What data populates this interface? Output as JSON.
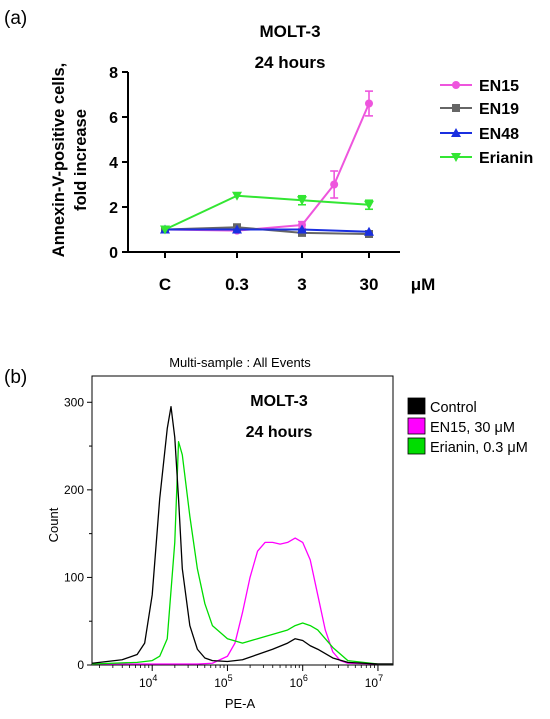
{
  "panel_a": {
    "label": "(a)",
    "title_line1": "MOLT-3",
    "title_line2": "24 hours",
    "ylabel_line1": "Annexin-V-positive cells,",
    "ylabel_line2": "fold increase",
    "x_unit": "μM"
  },
  "panel_b": {
    "label": "(b)",
    "header": "Multi-sample : All Events",
    "title_line1": "MOLT-3",
    "title_line2": "24 hours",
    "ylabel": "Count",
    "xlabel": "PE-A"
  },
  "chart_data": [
    {
      "type": "line",
      "title": "MOLT-3 24 hours",
      "xlabel": "",
      "ylabel": "Annexin-V-positive cells, fold increase",
      "categories": [
        "C",
        "0.3",
        "3",
        "30"
      ],
      "ylim": [
        0,
        8
      ],
      "yticks": [
        0,
        2,
        4,
        6,
        8
      ],
      "legend_position": "right",
      "series": [
        {
          "name": "EN15",
          "color": "#ee55dd",
          "marker": "circle",
          "x": [
            "C",
            "0.3",
            "3",
            "10",
            "30"
          ],
          "xpos": [
            0,
            1,
            2,
            2.48,
            3
          ],
          "values": [
            1.0,
            0.95,
            1.2,
            3.0,
            6.6
          ],
          "errors": [
            0.05,
            0.05,
            0.15,
            0.6,
            0.55
          ]
        },
        {
          "name": "EN19",
          "color": "#666666",
          "marker": "square",
          "x": [
            "C",
            "0.3",
            "3",
            "30"
          ],
          "xpos": [
            0,
            1,
            2,
            3
          ],
          "values": [
            1.0,
            1.1,
            0.85,
            0.8
          ],
          "errors": [
            0.05,
            0.08,
            0.05,
            0.05
          ]
        },
        {
          "name": "EN48",
          "color": "#1a2fe0",
          "marker": "triangle-up",
          "x": [
            "C",
            "0.3",
            "3",
            "30"
          ],
          "xpos": [
            0,
            1,
            2,
            3
          ],
          "values": [
            1.0,
            1.0,
            1.0,
            0.9
          ],
          "errors": [
            0.05,
            0.05,
            0.05,
            0.05
          ]
        },
        {
          "name": "Erianin",
          "color": "#33e633",
          "marker": "triangle-down",
          "x": [
            "C",
            "0.3",
            "3",
            "30"
          ],
          "xpos": [
            0,
            1,
            2,
            3
          ],
          "values": [
            1.0,
            2.5,
            2.3,
            2.1
          ],
          "errors": [
            0.05,
            0.1,
            0.2,
            0.2
          ]
        }
      ]
    },
    {
      "type": "line",
      "title": "Multi-sample : All Events",
      "xlabel": "PE-A",
      "ylabel": "Count",
      "x_scale": "log",
      "xlim_log10": [
        3.2,
        7.2
      ],
      "xticks": [
        "10^4",
        "10^5",
        "10^6",
        "10^7"
      ],
      "ylim": [
        0,
        330
      ],
      "yticks": [
        0,
        100,
        200,
        300
      ],
      "legend_position": "right",
      "series": [
        {
          "name": "Control",
          "color": "#000000",
          "x_log10": [
            3.2,
            3.4,
            3.6,
            3.8,
            3.9,
            4.0,
            4.1,
            4.2,
            4.25,
            4.3,
            4.35,
            4.4,
            4.5,
            4.6,
            4.7,
            4.8,
            5.0,
            5.2,
            5.4,
            5.6,
            5.8,
            5.9,
            6.0,
            6.1,
            6.2,
            6.4,
            6.6,
            7.0,
            7.2
          ],
          "values": [
            2,
            4,
            6,
            12,
            25,
            80,
            190,
            270,
            295,
            260,
            190,
            110,
            45,
            18,
            8,
            5,
            4,
            6,
            12,
            18,
            25,
            30,
            28,
            22,
            18,
            8,
            3,
            1,
            0
          ]
        },
        {
          "name": "EN15, 30 μM",
          "color": "#ff00ff",
          "x_log10": [
            3.2,
            4.0,
            4.6,
            4.8,
            5.0,
            5.1,
            5.2,
            5.3,
            5.4,
            5.5,
            5.6,
            5.7,
            5.8,
            5.9,
            6.0,
            6.1,
            6.2,
            6.3,
            6.4,
            6.5,
            6.6,
            7.0,
            7.2
          ],
          "values": [
            0,
            0,
            0,
            2,
            10,
            25,
            60,
            100,
            130,
            140,
            140,
            138,
            140,
            145,
            140,
            120,
            80,
            40,
            15,
            5,
            2,
            0,
            0
          ]
        },
        {
          "name": "Erianin, 0.3 μM",
          "color": "#00dd00",
          "x_log10": [
            3.2,
            3.8,
            4.0,
            4.1,
            4.2,
            4.3,
            4.35,
            4.4,
            4.5,
            4.6,
            4.7,
            4.8,
            5.0,
            5.2,
            5.4,
            5.6,
            5.8,
            5.9,
            6.0,
            6.1,
            6.2,
            6.3,
            6.4,
            6.6,
            7.0,
            7.2
          ],
          "values": [
            1,
            3,
            5,
            10,
            30,
            140,
            255,
            240,
            170,
            110,
            70,
            45,
            30,
            25,
            30,
            35,
            40,
            45,
            48,
            45,
            40,
            30,
            20,
            5,
            1,
            0
          ]
        }
      ]
    }
  ]
}
